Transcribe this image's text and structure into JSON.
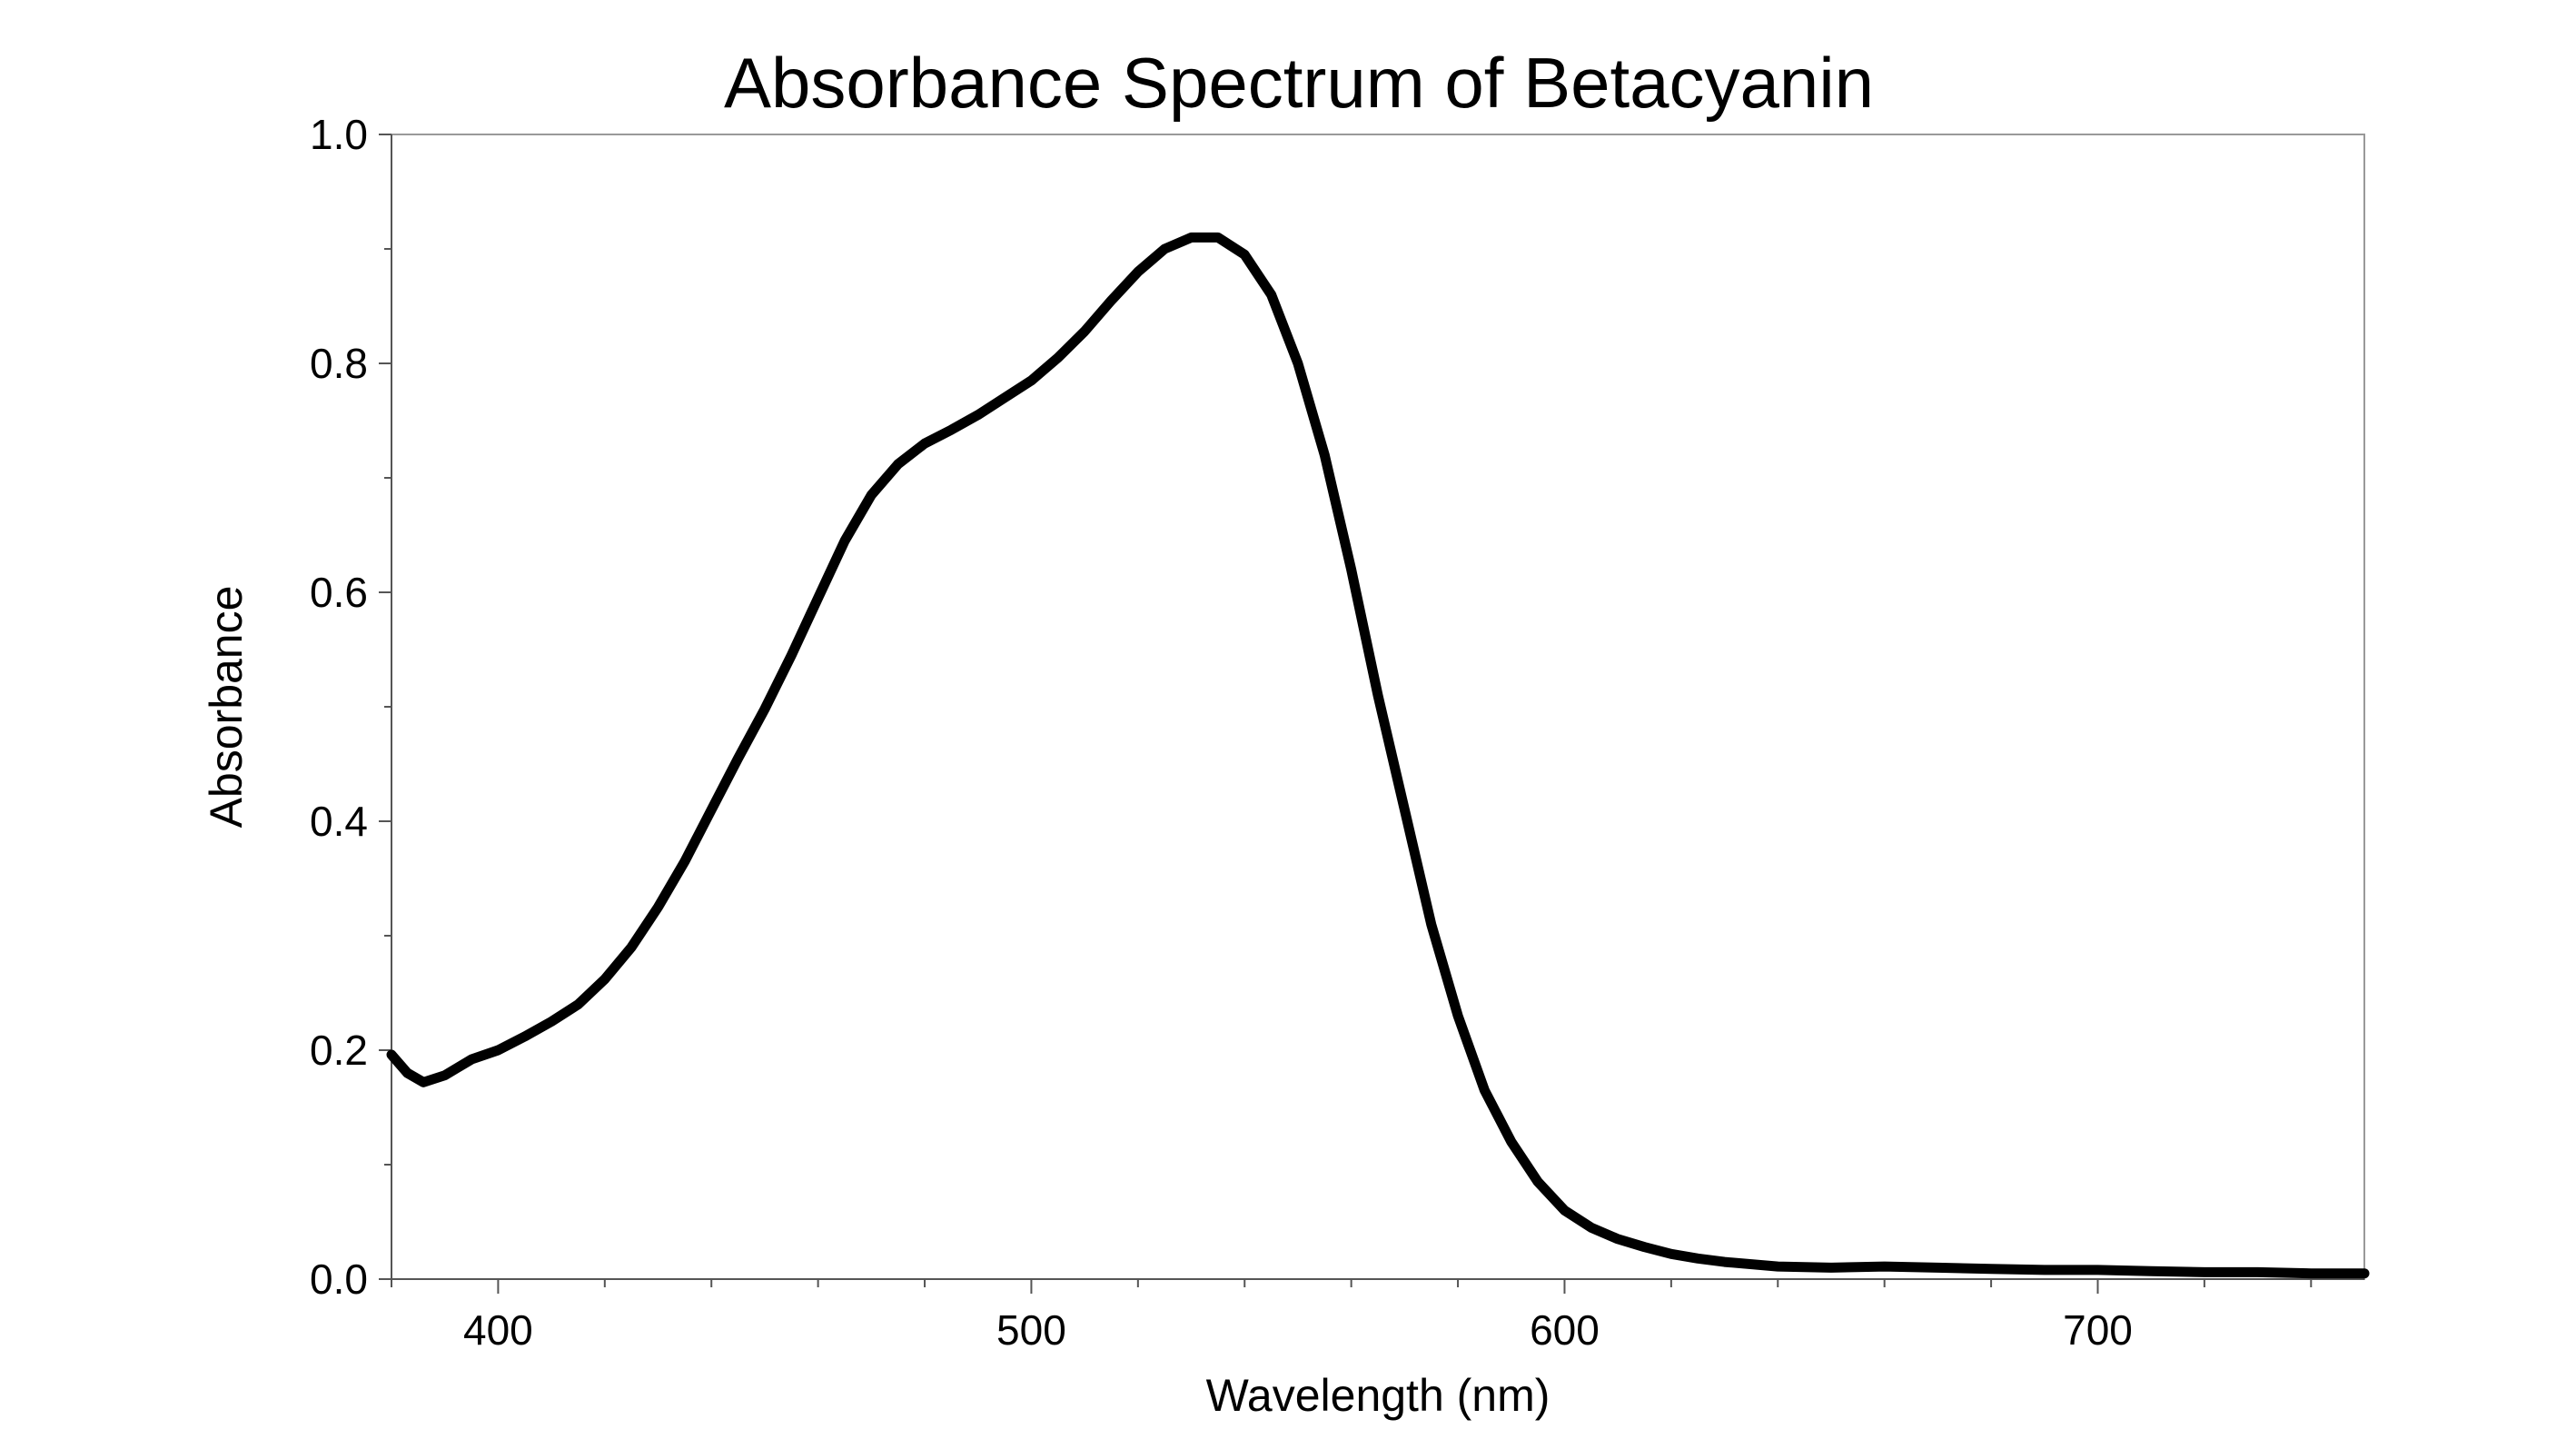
{
  "chart_data": {
    "type": "line",
    "title": "Absorbance Spectrum of Betacyanin",
    "xlabel": "Wavelength (nm)",
    "ylabel": "Absorbance",
    "xlim": [
      380,
      750
    ],
    "ylim": [
      0,
      1.0
    ],
    "x_ticks": [
      400,
      500,
      600,
      700
    ],
    "x_tick_labels": [
      "400",
      "500",
      "600",
      "700"
    ],
    "x_minor_step": 20,
    "y_ticks": [
      0,
      0.2,
      0.4,
      0.6,
      0.8,
      1.0
    ],
    "y_tick_labels": [
      "0.0",
      "0.2",
      "0.4",
      "0.6",
      "0.8",
      "1.0"
    ],
    "y_minor_step": 0.1,
    "grid": false,
    "line_color": "#000000",
    "series": [
      {
        "x": [
          380,
          383,
          386,
          390,
          395,
          400,
          405,
          410,
          415,
          420,
          425,
          430,
          435,
          440,
          445,
          450,
          455,
          460,
          465,
          470,
          475,
          480,
          485,
          490,
          495,
          500,
          505,
          510,
          515,
          520,
          525,
          530,
          535,
          540,
          545,
          550,
          555,
          560,
          565,
          570,
          575,
          580,
          585,
          590,
          595,
          600,
          605,
          610,
          615,
          620,
          625,
          630,
          640,
          650,
          660,
          670,
          680,
          690,
          700,
          710,
          720,
          730,
          740,
          750
        ],
        "y": [
          0.196,
          0.18,
          0.172,
          0.178,
          0.192,
          0.2,
          0.212,
          0.225,
          0.24,
          0.262,
          0.29,
          0.325,
          0.365,
          0.41,
          0.455,
          0.498,
          0.545,
          0.595,
          0.645,
          0.685,
          0.712,
          0.73,
          0.742,
          0.755,
          0.77,
          0.785,
          0.805,
          0.828,
          0.855,
          0.88,
          0.9,
          0.91,
          0.91,
          0.895,
          0.86,
          0.8,
          0.72,
          0.62,
          0.51,
          0.41,
          0.31,
          0.23,
          0.165,
          0.12,
          0.085,
          0.06,
          0.045,
          0.035,
          0.028,
          0.022,
          0.018,
          0.015,
          0.011,
          0.01,
          0.011,
          0.01,
          0.009,
          0.008,
          0.008,
          0.007,
          0.006,
          0.006,
          0.005,
          0.005
        ]
      }
    ]
  }
}
